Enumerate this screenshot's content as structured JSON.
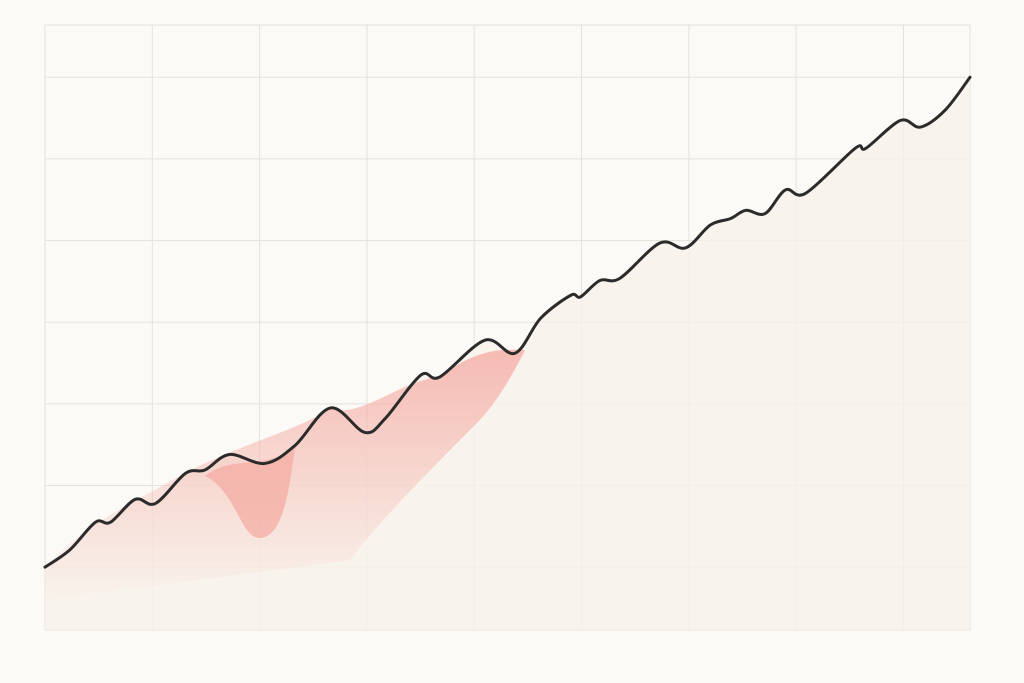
{
  "chart_data": {
    "type": "line",
    "x": [
      0,
      0.23,
      0.47,
      0.61,
      0.84,
      1.03,
      1.31,
      1.49,
      1.72,
      2.05,
      2.33,
      2.66,
      2.98,
      3.17,
      3.5,
      3.68,
      4.1,
      4.38,
      4.62,
      4.9,
      4.99,
      5.17,
      5.36,
      5.73,
      5.97,
      6.2,
      6.39,
      6.53,
      6.71,
      6.9,
      7.09,
      7.55,
      7.65,
      7.97,
      8.16,
      8.39,
      8.62
    ],
    "series": [
      {
        "color": "#2b2b2b",
        "values": [
          1.0,
          1.21,
          1.55,
          1.55,
          1.83,
          1.78,
          2.15,
          2.19,
          2.38,
          2.27,
          2.49,
          2.95,
          2.65,
          2.82,
          3.35,
          3.33,
          3.78,
          3.62,
          4.05,
          4.33,
          4.31,
          4.51,
          4.54,
          4.97,
          4.91,
          5.19,
          5.27,
          5.37,
          5.33,
          5.62,
          5.58,
          6.13,
          6.13,
          6.47,
          6.39,
          6.6,
          7.0
        ]
      }
    ],
    "xlim": [
      0,
      8.62
    ],
    "ylim": [
      0.23,
      7.64
    ],
    "xticks": [
      0,
      1,
      2,
      3,
      4,
      5,
      6,
      7,
      8
    ],
    "yticks": [
      1,
      2,
      3,
      4,
      5,
      6,
      7
    ],
    "grid": true,
    "area_color": "#f6f1ea"
  }
}
